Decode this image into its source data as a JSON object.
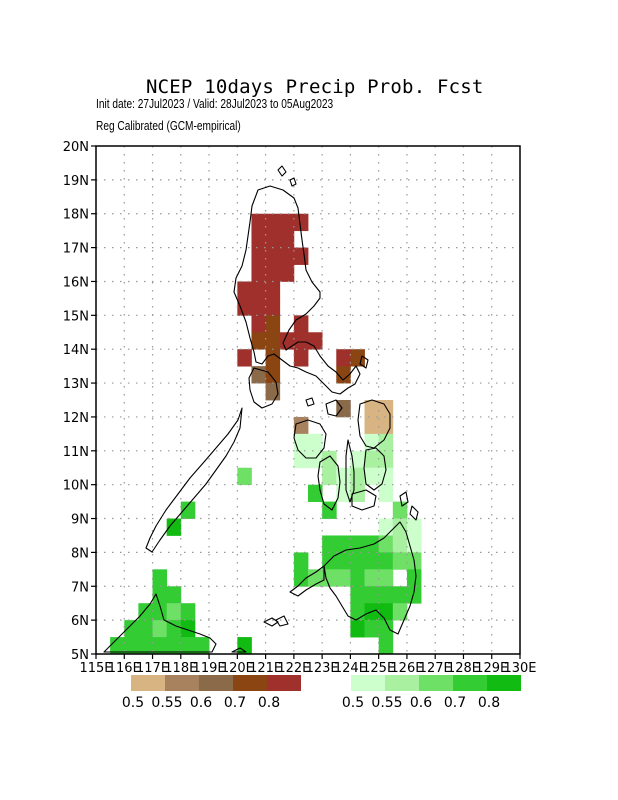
{
  "header": {
    "title": "NCEP 10days Precip Prob. Fcst",
    "subtitle1": "Init date: 27Jul2023 / Valid: 28Jul2023 to 05Aug2023",
    "subtitle2": "Reg Calibrated (GCM-empirical)"
  },
  "map": {
    "lon_range": [
      115,
      130
    ],
    "lat_range": [
      5,
      20
    ],
    "lon_labels": [
      "115E",
      "116E",
      "117E",
      "118E",
      "119E",
      "120E",
      "121E",
      "122E",
      "123E",
      "124E",
      "125E",
      "126E",
      "127E",
      "128E",
      "129E",
      "130E"
    ],
    "lat_labels": [
      "5N",
      "6N",
      "7N",
      "8N",
      "9N",
      "10N",
      "11N",
      "12N",
      "13N",
      "14N",
      "15N",
      "16N",
      "17N",
      "18N",
      "19N",
      "20N"
    ],
    "grid": true,
    "cell_size_deg": 0.5
  },
  "legend": {
    "dry": {
      "colors": [
        "#d8b483",
        "#a8825e",
        "#8b6a4a",
        "#8b4513",
        "#a0302c"
      ],
      "labels": [
        "0.5",
        "0.55",
        "0.6",
        "0.7",
        "0.8"
      ]
    },
    "wet": {
      "colors": [
        "#ccffcc",
        "#a9f0a0",
        "#6ee066",
        "#33cc33",
        "#11bb11"
      ],
      "labels": [
        "0.5",
        "0.55",
        "0.6",
        "0.7",
        "0.8"
      ]
    }
  },
  "cells": [
    {
      "lon": 120.5,
      "lat": 17.5,
      "cat": "dry5"
    },
    {
      "lon": 121.0,
      "lat": 17.5,
      "cat": "dry5"
    },
    {
      "lon": 121.5,
      "lat": 17.5,
      "cat": "dry5"
    },
    {
      "lon": 122.0,
      "lat": 17.5,
      "cat": "dry5"
    },
    {
      "lon": 120.5,
      "lat": 17.0,
      "cat": "dry5"
    },
    {
      "lon": 121.0,
      "lat": 17.0,
      "cat": "dry5"
    },
    {
      "lon": 121.5,
      "lat": 17.0,
      "cat": "dry5"
    },
    {
      "lon": 120.5,
      "lat": 16.5,
      "cat": "dry5"
    },
    {
      "lon": 121.0,
      "lat": 16.5,
      "cat": "dry5"
    },
    {
      "lon": 121.5,
      "lat": 16.5,
      "cat": "dry5"
    },
    {
      "lon": 122.0,
      "lat": 16.5,
      "cat": "dry5"
    },
    {
      "lon": 120.5,
      "lat": 16.0,
      "cat": "dry5"
    },
    {
      "lon": 121.0,
      "lat": 16.0,
      "cat": "dry5"
    },
    {
      "lon": 121.5,
      "lat": 16.0,
      "cat": "dry5"
    },
    {
      "lon": 120.0,
      "lat": 15.5,
      "cat": "dry5"
    },
    {
      "lon": 120.5,
      "lat": 15.5,
      "cat": "dry5"
    },
    {
      "lon": 121.0,
      "lat": 15.5,
      "cat": "dry5"
    },
    {
      "lon": 120.0,
      "lat": 15.0,
      "cat": "dry5"
    },
    {
      "lon": 120.5,
      "lat": 15.0,
      "cat": "dry5"
    },
    {
      "lon": 121.0,
      "lat": 15.0,
      "cat": "dry5"
    },
    {
      "lon": 120.5,
      "lat": 14.5,
      "cat": "dry5"
    },
    {
      "lon": 121.0,
      "lat": 14.5,
      "cat": "dry4"
    },
    {
      "lon": 122.0,
      "lat": 14.5,
      "cat": "dry5"
    },
    {
      "lon": 120.5,
      "lat": 14.0,
      "cat": "dry4"
    },
    {
      "lon": 121.0,
      "lat": 14.0,
      "cat": "dry4"
    },
    {
      "lon": 121.5,
      "lat": 14.0,
      "cat": "dry5"
    },
    {
      "lon": 122.0,
      "lat": 14.0,
      "cat": "dry5"
    },
    {
      "lon": 122.5,
      "lat": 14.0,
      "cat": "dry5"
    },
    {
      "lon": 120.0,
      "lat": 13.5,
      "cat": "dry5"
    },
    {
      "lon": 121.0,
      "lat": 13.5,
      "cat": "dry4"
    },
    {
      "lon": 122.0,
      "lat": 13.5,
      "cat": "dry5"
    },
    {
      "lon": 123.5,
      "lat": 13.5,
      "cat": "dry5"
    },
    {
      "lon": 124.0,
      "lat": 13.5,
      "cat": "dry4"
    },
    {
      "lon": 120.5,
      "lat": 13.0,
      "cat": "dry3"
    },
    {
      "lon": 121.0,
      "lat": 13.0,
      "cat": "dry4"
    },
    {
      "lon": 123.5,
      "lat": 13.0,
      "cat": "dry4"
    },
    {
      "lon": 121.0,
      "lat": 12.5,
      "cat": "dry3"
    },
    {
      "lon": 123.5,
      "lat": 12.0,
      "cat": "dry3"
    },
    {
      "lon": 124.5,
      "lat": 12.0,
      "cat": "dry1"
    },
    {
      "lon": 125.0,
      "lat": 12.0,
      "cat": "dry1"
    },
    {
      "lon": 122.0,
      "lat": 11.5,
      "cat": "dry2"
    },
    {
      "lon": 124.5,
      "lat": 11.5,
      "cat": "dry1"
    },
    {
      "lon": 125.0,
      "lat": 11.5,
      "cat": "dry1"
    },
    {
      "lon": 122.0,
      "lat": 11.0,
      "cat": "wet1"
    },
    {
      "lon": 122.5,
      "lat": 11.0,
      "cat": "wet1"
    },
    {
      "lon": 124.5,
      "lat": 11.0,
      "cat": "wet1"
    },
    {
      "lon": 125.0,
      "lat": 11.0,
      "cat": "wet2"
    },
    {
      "lon": 122.0,
      "lat": 10.5,
      "cat": "wet1"
    },
    {
      "lon": 122.5,
      "lat": 10.5,
      "cat": "wet1"
    },
    {
      "lon": 123.0,
      "lat": 10.5,
      "cat": "wet2"
    },
    {
      "lon": 124.0,
      "lat": 10.5,
      "cat": "wet1"
    },
    {
      "lon": 124.5,
      "lat": 10.5,
      "cat": "wet2"
    },
    {
      "lon": 125.0,
      "lat": 10.5,
      "cat": "wet2"
    },
    {
      "lon": 123.0,
      "lat": 10.0,
      "cat": "wet2"
    },
    {
      "lon": 123.5,
      "lat": 10.0,
      "cat": "wet1"
    },
    {
      "lon": 124.0,
      "lat": 10.0,
      "cat": "wet2"
    },
    {
      "lon": 124.5,
      "lat": 10.0,
      "cat": "wet1"
    },
    {
      "lon": 125.0,
      "lat": 10.0,
      "cat": "wet1"
    },
    {
      "lon": 120.0,
      "lat": 10.0,
      "cat": "wet3"
    },
    {
      "lon": 122.5,
      "lat": 9.5,
      "cat": "wet4"
    },
    {
      "lon": 123.5,
      "lat": 9.5,
      "cat": "wet1"
    },
    {
      "lon": 124.0,
      "lat": 9.5,
      "cat": "wet2"
    },
    {
      "lon": 125.0,
      "lat": 9.5,
      "cat": "wet1"
    },
    {
      "lon": 123.0,
      "lat": 9.0,
      "cat": "wet4"
    },
    {
      "lon": 125.5,
      "lat": 9.0,
      "cat": "wet3"
    },
    {
      "lon": 118.0,
      "lat": 9.0,
      "cat": "wet4"
    },
    {
      "lon": 125.0,
      "lat": 8.5,
      "cat": "wet1"
    },
    {
      "lon": 125.5,
      "lat": 8.5,
      "cat": "wet2"
    },
    {
      "lon": 126.0,
      "lat": 8.5,
      "cat": "wet1"
    },
    {
      "lon": 117.5,
      "lat": 8.5,
      "cat": "wet5"
    },
    {
      "lon": 123.0,
      "lat": 8.0,
      "cat": "wet4"
    },
    {
      "lon": 123.5,
      "lat": 8.0,
      "cat": "wet4"
    },
    {
      "lon": 124.0,
      "lat": 8.0,
      "cat": "wet4"
    },
    {
      "lon": 124.5,
      "lat": 8.0,
      "cat": "wet4"
    },
    {
      "lon": 125.0,
      "lat": 8.0,
      "cat": "wet3"
    },
    {
      "lon": 125.5,
      "lat": 8.0,
      "cat": "wet2"
    },
    {
      "lon": 126.0,
      "lat": 8.0,
      "cat": "wet1"
    },
    {
      "lon": 122.0,
      "lat": 7.5,
      "cat": "wet4"
    },
    {
      "lon": 123.0,
      "lat": 7.5,
      "cat": "wet4"
    },
    {
      "lon": 123.5,
      "lat": 7.5,
      "cat": "wet4"
    },
    {
      "lon": 124.0,
      "lat": 7.5,
      "cat": "wet4"
    },
    {
      "lon": 124.5,
      "lat": 7.5,
      "cat": "wet4"
    },
    {
      "lon": 125.0,
      "lat": 7.5,
      "cat": "wet4"
    },
    {
      "lon": 125.5,
      "lat": 7.5,
      "cat": "wet3"
    },
    {
      "lon": 126.0,
      "lat": 7.5,
      "cat": "wet3"
    },
    {
      "lon": 122.0,
      "lat": 7.0,
      "cat": "wet4"
    },
    {
      "lon": 122.5,
      "lat": 7.0,
      "cat": "wet3"
    },
    {
      "lon": 123.0,
      "lat": 7.0,
      "cat": "wet3"
    },
    {
      "lon": 123.5,
      "lat": 7.0,
      "cat": "wet3"
    },
    {
      "lon": 124.0,
      "lat": 7.0,
      "cat": "wet4"
    },
    {
      "lon": 124.5,
      "lat": 7.0,
      "cat": "wet3"
    },
    {
      "lon": 125.0,
      "lat": 7.0,
      "cat": "wet3"
    },
    {
      "lon": 126.0,
      "lat": 7.0,
      "cat": "wet4"
    },
    {
      "lon": 124.0,
      "lat": 6.5,
      "cat": "wet4"
    },
    {
      "lon": 124.5,
      "lat": 6.5,
      "cat": "wet4"
    },
    {
      "lon": 125.0,
      "lat": 6.5,
      "cat": "wet4"
    },
    {
      "lon": 125.5,
      "lat": 6.5,
      "cat": "wet4"
    },
    {
      "lon": 126.0,
      "lat": 6.5,
      "cat": "wet4"
    },
    {
      "lon": 124.0,
      "lat": 6.0,
      "cat": "wet4"
    },
    {
      "lon": 124.5,
      "lat": 6.0,
      "cat": "wet5"
    },
    {
      "lon": 125.0,
      "lat": 6.0,
      "cat": "wet5"
    },
    {
      "lon": 125.5,
      "lat": 6.0,
      "cat": "wet3"
    },
    {
      "lon": 124.0,
      "lat": 5.5,
      "cat": "wet5"
    },
    {
      "lon": 124.5,
      "lat": 5.5,
      "cat": "wet4"
    },
    {
      "lon": 125.0,
      "lat": 5.5,
      "cat": "wet4"
    },
    {
      "lon": 125.0,
      "lat": 5.0,
      "cat": "wet4"
    },
    {
      "lon": 117.0,
      "lat": 7.0,
      "cat": "wet4"
    },
    {
      "lon": 117.0,
      "lat": 6.5,
      "cat": "wet4"
    },
    {
      "lon": 117.5,
      "lat": 6.5,
      "cat": "wet4"
    },
    {
      "lon": 116.5,
      "lat": 6.0,
      "cat": "wet4"
    },
    {
      "lon": 117.0,
      "lat": 6.0,
      "cat": "wet4"
    },
    {
      "lon": 117.5,
      "lat": 6.0,
      "cat": "wet3"
    },
    {
      "lon": 118.0,
      "lat": 6.0,
      "cat": "wet4"
    },
    {
      "lon": 116.0,
      "lat": 5.5,
      "cat": "wet4"
    },
    {
      "lon": 116.5,
      "lat": 5.5,
      "cat": "wet4"
    },
    {
      "lon": 117.0,
      "lat": 5.5,
      "cat": "wet3"
    },
    {
      "lon": 117.5,
      "lat": 5.5,
      "cat": "wet4"
    },
    {
      "lon": 118.0,
      "lat": 5.5,
      "cat": "wet5"
    },
    {
      "lon": 115.5,
      "lat": 5.0,
      "cat": "wet4"
    },
    {
      "lon": 116.0,
      "lat": 5.0,
      "cat": "wet4"
    },
    {
      "lon": 116.5,
      "lat": 5.0,
      "cat": "wet4"
    },
    {
      "lon": 117.0,
      "lat": 5.0,
      "cat": "wet4"
    },
    {
      "lon": 117.5,
      "lat": 5.0,
      "cat": "wet4"
    },
    {
      "lon": 118.0,
      "lat": 5.0,
      "cat": "wet4"
    },
    {
      "lon": 118.5,
      "lat": 5.0,
      "cat": "wet4"
    },
    {
      "lon": 120.0,
      "lat": 5.0,
      "cat": "wet5"
    }
  ]
}
